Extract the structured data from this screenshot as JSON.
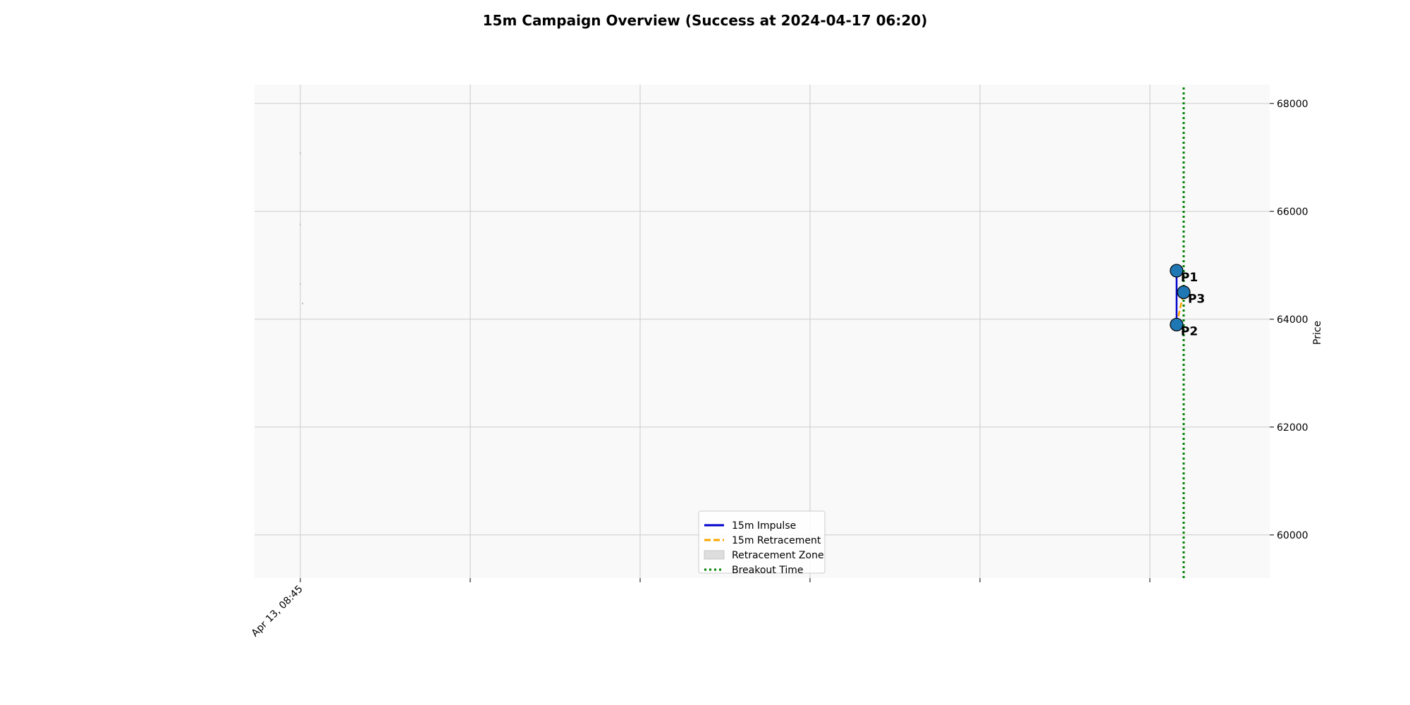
{
  "chart_data": {
    "type": "line",
    "title": "15m Campaign Overview (Success at 2024-04-17 06:20)",
    "xlabel": "",
    "ylabel": "Price",
    "ylim": [
      59200,
      68350
    ],
    "y_ticks": [
      60000,
      62000,
      64000,
      66000,
      68000
    ],
    "x_tick_labels": [
      "Apr 13, 08:45",
      "",
      "",
      "",
      "",
      ""
    ],
    "grid": true,
    "legend_position": "lower-center",
    "legend": [
      {
        "label": "15m Impulse",
        "style": "solid",
        "color": "#0000cc"
      },
      {
        "label": "15m Retracement",
        "style": "dashed",
        "color": "#ffa500"
      },
      {
        "label": "Retracement Zone",
        "style": "patch",
        "color": "#dddddd"
      },
      {
        "label": "Breakout Time",
        "style": "dotted",
        "color": "#008000"
      }
    ],
    "breakout_time": "2024-04-17 06:20",
    "points": [
      {
        "label": "P1",
        "time": "2024-04-17 05:35",
        "price": 64900
      },
      {
        "label": "P2",
        "time": "2024-04-17 05:35",
        "price": 63900
      },
      {
        "label": "P3",
        "time": "2024-04-17 06:20",
        "price": 64500
      }
    ],
    "candles": [
      {
        "time": "2024-04-13 08:45",
        "high": 67100,
        "low": 67070
      },
      {
        "time": "2024-04-13 08:45",
        "high": 65770,
        "low": 65750
      },
      {
        "time": "2024-04-13 08:45",
        "high": 64670,
        "low": 64650
      },
      {
        "time": "2024-04-13 09:00",
        "high": 64310,
        "low": 64290
      }
    ],
    "colors": {
      "marker": "#1f77b4",
      "breakout": "#008000",
      "retracement": "#ffa500",
      "plot_background": "#f9f9f9",
      "grid": "#cccccc"
    }
  }
}
